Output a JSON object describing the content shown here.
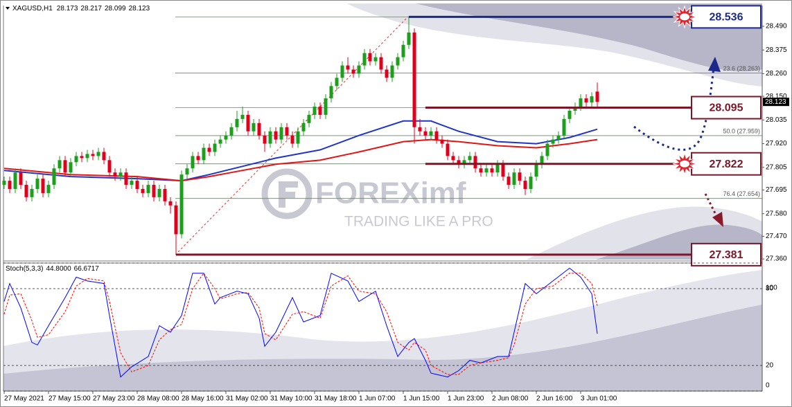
{
  "chart_data": {
    "type": "candlestick",
    "symbol": "XAGUSD,H1",
    "xlim": [
      -0.125,
      136.75
    ],
    "ylim": [
      27.357,
      28.591
    ],
    "xticks": [
      {
        "value": 0,
        "label": "27 May 2021"
      },
      {
        "value": 8,
        "label": "27 May 15:00"
      },
      {
        "value": 16,
        "label": "27 May 23:00"
      },
      {
        "value": 24,
        "label": "28 May 08:00"
      },
      {
        "value": 32,
        "label": "28 May 16:00"
      },
      {
        "value": 40,
        "label": "31 May 02:00"
      },
      {
        "value": 48,
        "label": "31 May 10:00"
      },
      {
        "value": 56,
        "label": "31 May 18:00"
      },
      {
        "value": 64,
        "label": "1 Jun 07:00"
      },
      {
        "value": 72,
        "label": "1 Jun 15:00"
      },
      {
        "value": 80,
        "label": "1 Jun 23:00"
      },
      {
        "value": 88,
        "label": "2 Jun 08:00"
      },
      {
        "value": 96,
        "label": "2 Jun 16:00"
      },
      {
        "value": 104,
        "label": "3 Jun 01:00"
      }
    ],
    "yticks": [
      {
        "value": 28.49,
        "label": "28.490"
      },
      28.375,
      {
        "value": 28.26,
        "label": "28.260"
      },
      {
        "value": 28.15,
        "label": "28.150"
      },
      28.035,
      {
        "value": 27.92,
        "label": "27.920"
      },
      27.805,
      27.695,
      {
        "value": 27.58,
        "label": "27.580"
      },
      {
        "value": 27.47,
        "label": "27.470"
      },
      {
        "value": 27.36,
        "label": "27.360"
      }
    ],
    "bull_color": "#1d9e1d",
    "bear_color": "#e0001b",
    "ohlc": [
      [
        27.72,
        27.76,
        27.7,
        27.74
      ],
      [
        27.74,
        27.76,
        27.68,
        27.7
      ],
      [
        27.7,
        27.8,
        27.68,
        27.78
      ],
      [
        27.78,
        27.8,
        27.7,
        27.72
      ],
      [
        27.72,
        27.74,
        27.64,
        27.66
      ],
      [
        27.66,
        27.72,
        27.64,
        27.7
      ],
      [
        27.7,
        27.77,
        27.68,
        27.75
      ],
      [
        27.75,
        27.77,
        27.66,
        27.68
      ],
      [
        27.68,
        27.74,
        27.66,
        27.72
      ],
      [
        27.72,
        27.82,
        27.7,
        27.8
      ],
      [
        27.8,
        27.86,
        27.78,
        27.84
      ],
      [
        27.84,
        27.86,
        27.76,
        27.78
      ],
      [
        27.78,
        27.85,
        27.76,
        27.83
      ],
      [
        27.83,
        27.88,
        27.81,
        27.86
      ],
      [
        27.86,
        27.88,
        27.83,
        27.85
      ],
      [
        27.85,
        27.89,
        27.83,
        27.87
      ],
      [
        27.87,
        27.89,
        27.84,
        27.86
      ],
      [
        27.86,
        27.9,
        27.84,
        27.88
      ],
      [
        27.88,
        27.9,
        27.82,
        27.84
      ],
      [
        27.84,
        27.86,
        27.76,
        27.78
      ],
      [
        27.78,
        27.8,
        27.74,
        27.76
      ],
      [
        27.76,
        27.8,
        27.74,
        27.78
      ],
      [
        27.78,
        27.8,
        27.7,
        27.72
      ],
      [
        27.72,
        27.76,
        27.7,
        27.74
      ],
      [
        27.74,
        27.76,
        27.68,
        27.7
      ],
      [
        27.7,
        27.72,
        27.66,
        27.68
      ],
      [
        27.68,
        27.74,
        27.66,
        27.72
      ],
      [
        27.72,
        27.74,
        27.64,
        27.66
      ],
      [
        27.66,
        27.72,
        27.64,
        27.7
      ],
      [
        27.7,
        27.72,
        27.62,
        27.64
      ],
      [
        27.64,
        27.66,
        27.58,
        27.62
      ],
      [
        27.62,
        27.64,
        27.381,
        27.48
      ],
      [
        27.48,
        27.79,
        27.46,
        27.77
      ],
      [
        27.77,
        27.82,
        27.75,
        27.8
      ],
      [
        27.8,
        27.88,
        27.78,
        27.86
      ],
      [
        27.86,
        27.88,
        27.82,
        27.84
      ],
      [
        27.84,
        27.92,
        27.82,
        27.9
      ],
      [
        27.9,
        27.92,
        27.86,
        27.88
      ],
      [
        27.88,
        27.94,
        27.86,
        27.92
      ],
      [
        27.92,
        27.96,
        27.9,
        27.94
      ],
      [
        27.94,
        27.98,
        27.92,
        27.96
      ],
      [
        27.96,
        28.02,
        27.94,
        28.0
      ],
      [
        28.0,
        28.08,
        27.98,
        28.04
      ],
      [
        28.04,
        28.1,
        28.02,
        28.06
      ],
      [
        28.06,
        28.08,
        27.96,
        27.98
      ],
      [
        27.98,
        28.04,
        27.96,
        28.02
      ],
      [
        28.02,
        28.04,
        27.94,
        27.96
      ],
      [
        27.96,
        27.98,
        27.88,
        27.92
      ],
      [
        27.92,
        28.0,
        27.9,
        27.98
      ],
      [
        27.98,
        28.0,
        27.92,
        27.94
      ],
      [
        27.94,
        28.02,
        27.92,
        28.0
      ],
      [
        28.0,
        28.02,
        27.94,
        27.96
      ],
      [
        27.96,
        27.98,
        27.9,
        27.92
      ],
      [
        27.92,
        28.0,
        27.9,
        27.98
      ],
      [
        27.98,
        28.04,
        27.96,
        28.02
      ],
      [
        28.02,
        28.08,
        28.0,
        28.06
      ],
      [
        28.06,
        28.12,
        28.04,
        28.1
      ],
      [
        28.1,
        28.12,
        28.04,
        28.06
      ],
      [
        28.06,
        28.16,
        28.04,
        28.14
      ],
      [
        28.14,
        28.22,
        28.12,
        28.2
      ],
      [
        28.2,
        28.26,
        28.18,
        28.24
      ],
      [
        28.24,
        28.32,
        28.22,
        28.3
      ],
      [
        28.3,
        28.34,
        28.26,
        28.28
      ],
      [
        28.28,
        28.3,
        28.24,
        28.26
      ],
      [
        28.26,
        28.32,
        28.24,
        28.3
      ],
      [
        28.3,
        28.38,
        28.28,
        28.36
      ],
      [
        28.36,
        28.38,
        28.3,
        28.32
      ],
      [
        28.32,
        28.36,
        28.3,
        28.34
      ],
      [
        28.34,
        28.36,
        28.26,
        28.28
      ],
      [
        28.28,
        28.3,
        28.22,
        28.24
      ],
      [
        28.24,
        28.32,
        28.22,
        28.3
      ],
      [
        28.3,
        28.36,
        28.28,
        28.34
      ],
      [
        28.34,
        28.42,
        28.32,
        28.4
      ],
      [
        28.4,
        28.536,
        28.38,
        28.46
      ],
      [
        28.46,
        28.48,
        27.92,
        28.0
      ],
      [
        28.0,
        28.04,
        27.96,
        27.98
      ],
      [
        27.98,
        28.0,
        27.94,
        27.96
      ],
      [
        27.96,
        28.0,
        27.94,
        27.98
      ],
      [
        27.98,
        28.0,
        27.92,
        27.94
      ],
      [
        27.94,
        27.96,
        27.9,
        27.92
      ],
      [
        27.92,
        27.94,
        27.84,
        27.86
      ],
      [
        27.86,
        27.88,
        27.82,
        27.84
      ],
      [
        27.84,
        27.86,
        27.8,
        27.82
      ],
      [
        27.82,
        27.86,
        27.8,
        27.84
      ],
      [
        27.84,
        27.88,
        27.82,
        27.86
      ],
      [
        27.86,
        27.88,
        27.78,
        27.8
      ],
      [
        27.8,
        27.82,
        27.76,
        27.78
      ],
      [
        27.78,
        27.82,
        27.76,
        27.8
      ],
      [
        27.8,
        27.82,
        27.76,
        27.78
      ],
      [
        27.78,
        27.84,
        27.76,
        27.82
      ],
      [
        27.82,
        27.84,
        27.74,
        27.76
      ],
      [
        27.76,
        27.78,
        27.7,
        27.72
      ],
      [
        27.72,
        27.8,
        27.7,
        27.78
      ],
      [
        27.78,
        27.8,
        27.72,
        27.74
      ],
      [
        27.74,
        27.76,
        27.67,
        27.7
      ],
      [
        27.7,
        27.78,
        27.68,
        27.76
      ],
      [
        27.76,
        27.84,
        27.74,
        27.82
      ],
      [
        27.82,
        27.88,
        27.8,
        27.86
      ],
      [
        27.86,
        27.94,
        27.84,
        27.92
      ],
      [
        27.92,
        27.96,
        27.9,
        27.94
      ],
      [
        27.94,
        27.98,
        27.92,
        27.96
      ],
      [
        27.96,
        28.06,
        27.94,
        28.04
      ],
      [
        28.04,
        28.1,
        28.02,
        28.08
      ],
      [
        28.08,
        28.12,
        28.06,
        28.1
      ],
      [
        28.1,
        28.16,
        28.08,
        28.14
      ],
      [
        28.14,
        28.16,
        28.1,
        28.12
      ],
      [
        28.12,
        28.17,
        28.1,
        28.15
      ],
      [
        28.173,
        28.217,
        28.099,
        28.123
      ]
    ],
    "ma": [
      {
        "color": "#1f35c8",
        "x": [
          0,
          12,
          24,
          32,
          37,
          43,
          49,
          57,
          64,
          72,
          77,
          82,
          89,
          96,
          102,
          107
        ],
        "values": [
          27.79,
          27.76,
          27.75,
          27.74,
          27.77,
          27.81,
          27.85,
          27.89,
          27.96,
          28.03,
          28.03,
          27.98,
          27.93,
          27.92,
          27.95,
          27.99
        ]
      },
      {
        "color": "#e31414",
        "x": [
          0,
          12,
          24,
          32,
          37,
          43,
          49,
          57,
          64,
          72,
          77,
          82,
          89,
          96,
          102,
          107
        ],
        "values": [
          27.8,
          27.77,
          27.76,
          27.74,
          27.76,
          27.79,
          27.82,
          27.84,
          27.88,
          27.93,
          27.94,
          27.93,
          27.91,
          27.9,
          27.92,
          27.94
        ]
      }
    ],
    "fib": [
      28.536,
      {
        "value": 28.263,
        "label": "23.6 (28.263)"
      },
      28.095,
      {
        "value": 27.959,
        "label": "50.0 (27.959)"
      },
      27.822,
      {
        "value": 27.654,
        "label": "76.4 (27.654)"
      },
      27.381
    ],
    "levels": [
      28.536,
      28.095,
      27.822,
      27.381
    ],
    "level_start": [
      73,
      76,
      76,
      31
    ],
    "level_colors": [
      "#1b2a8a",
      "#7a1628",
      "#7a1628",
      "#7a1628"
    ],
    "watermark": {
      "brand": "FOREXimf",
      "tagline": "TRADING LIKE A PRO"
    },
    "stoch": {
      "title": "Stoch(5,3,3)",
      "readings": [
        {
          "value": 44.8,
          "label": "44.8000"
        },
        66.6717
      ],
      "ylim": [
        0,
        100
      ],
      "yticks": [
        0,
        20,
        80,
        100
      ],
      "x": [
        0,
        1,
        3,
        5,
        6,
        8,
        11,
        13,
        15,
        18,
        19,
        21,
        23,
        26,
        28,
        30,
        32,
        34,
        36,
        38,
        39,
        42,
        44,
        46,
        47,
        49,
        52,
        54,
        57,
        59,
        62,
        64,
        67,
        69,
        71,
        73,
        74,
        76,
        77,
        80,
        82,
        84,
        86,
        89,
        91,
        92,
        94,
        96,
        99,
        102,
        104,
        106,
        107
      ],
      "series": [
        {
          "color": "#0000ff",
          "dashed": false,
          "values": [
            70,
            84,
            65,
            38,
            36,
            51,
            73,
            89,
            86,
            84,
            59,
            11,
            19,
            27,
            51,
            46,
            59,
            92,
            92,
            68,
            73,
            78,
            76,
            57,
            35,
            46,
            73,
            54,
            59,
            92,
            86,
            70,
            78,
            51,
            27,
            38,
            41,
            24,
            14,
            11,
            16,
            24,
            22,
            27,
            27,
            46,
            84,
            76,
            86,
            96,
            89,
            76,
            44.8
          ]
        },
        {
          "color": "#ff0000",
          "dashed": true,
          "values": [
            60,
            75,
            76,
            55,
            42,
            44,
            62,
            82,
            88,
            86,
            70,
            30,
            15,
            20,
            40,
            48,
            52,
            80,
            92,
            80,
            72,
            76,
            77,
            65,
            45,
            40,
            60,
            62,
            57,
            82,
            90,
            78,
            76,
            62,
            38,
            32,
            38,
            32,
            20,
            13,
            13,
            20,
            22,
            24,
            26,
            36,
            68,
            80,
            82,
            92,
            92,
            84,
            66.6717
          ]
        }
      ]
    }
  }
}
